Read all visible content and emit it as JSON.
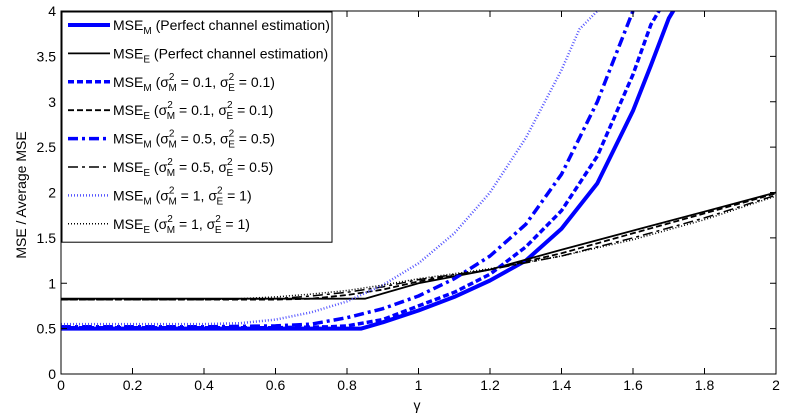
{
  "chart_data": {
    "type": "line",
    "xlabel": "γ",
    "ylabel": "MSE / Average MSE",
    "xlim": [
      0,
      2
    ],
    "ylim": [
      0,
      4
    ],
    "xticks": [
      0,
      0.2,
      0.4,
      0.6,
      0.8,
      1,
      1.2,
      1.4,
      1.6,
      1.8,
      2
    ],
    "xtick_labels": [
      "0",
      "0.2",
      "0.4",
      "0.6",
      "0.8",
      "1",
      "1.2",
      "1.4",
      "1.6",
      "1.8",
      "2"
    ],
    "yticks": [
      0,
      0.5,
      1,
      1.5,
      2,
      2.5,
      3,
      3.5,
      4
    ],
    "ytick_labels": [
      "0",
      "0.5",
      "1",
      "1.5",
      "2",
      "2.5",
      "3",
      "3.5",
      "4"
    ],
    "legend_position": "top-left",
    "series": [
      {
        "id": "mse-m-perfect",
        "legend_parts": [
          [
            "MSE",
            "n"
          ],
          [
            "M",
            "sub"
          ],
          [
            " (Perfect channel estimation)",
            "n"
          ]
        ],
        "color": "#0000ff",
        "dash": "solid",
        "width": 4,
        "x": [
          0,
          0.2,
          0.4,
          0.6,
          0.8,
          0.84,
          0.9,
          1.0,
          1.1,
          1.2,
          1.3,
          1.4,
          1.5,
          1.6,
          1.65,
          1.7,
          1.72
        ],
        "y": [
          0.5,
          0.5,
          0.5,
          0.5,
          0.5,
          0.5,
          0.57,
          0.7,
          0.85,
          1.03,
          1.25,
          1.6,
          2.1,
          2.9,
          3.4,
          3.92,
          4.05
        ]
      },
      {
        "id": "mse-e-perfect",
        "legend_parts": [
          [
            "MSE",
            "n"
          ],
          [
            "E",
            "sub"
          ],
          [
            " (Perfect channel estimation)",
            "n"
          ]
        ],
        "color": "#000000",
        "dash": "solid",
        "width": 1.8,
        "x": [
          0,
          0.2,
          0.4,
          0.6,
          0.8,
          0.85,
          1.0,
          1.2,
          1.4,
          1.6,
          1.8,
          2.0
        ],
        "y": [
          0.83,
          0.83,
          0.83,
          0.83,
          0.83,
          0.83,
          1.0,
          1.15,
          1.37,
          1.58,
          1.79,
          2.0
        ]
      },
      {
        "id": "mse-m-01",
        "legend_parts": [
          [
            "MSE",
            "n"
          ],
          [
            "M",
            "sub"
          ],
          [
            " (σ",
            "n"
          ],
          [
            "2",
            "sup"
          ],
          [
            "M",
            "sub"
          ],
          [
            " = 0.1, σ",
            "n"
          ],
          [
            "2",
            "sup"
          ],
          [
            "E",
            "sub"
          ],
          [
            " = 0.1)",
            "n"
          ]
        ],
        "color": "#0000ff",
        "dash": "6,3",
        "width": 3.5,
        "x": [
          0,
          0.2,
          0.4,
          0.6,
          0.75,
          0.8,
          0.9,
          1.0,
          1.1,
          1.2,
          1.3,
          1.4,
          1.5,
          1.6,
          1.65,
          1.68
        ],
        "y": [
          0.51,
          0.51,
          0.51,
          0.51,
          0.52,
          0.53,
          0.6,
          0.75,
          0.9,
          1.1,
          1.4,
          1.8,
          2.4,
          3.3,
          3.85,
          4.05
        ]
      },
      {
        "id": "mse-e-01",
        "legend_parts": [
          [
            "MSE",
            "n"
          ],
          [
            "E",
            "sub"
          ],
          [
            " (σ",
            "n"
          ],
          [
            "2",
            "sup"
          ],
          [
            "M",
            "sub"
          ],
          [
            " = 0.1, σ",
            "n"
          ],
          [
            "2",
            "sup"
          ],
          [
            "E",
            "sub"
          ],
          [
            " = 0.1)",
            "n"
          ]
        ],
        "color": "#000000",
        "dash": "6,3",
        "width": 1.8,
        "x": [
          0,
          0.2,
          0.4,
          0.6,
          0.7,
          0.8,
          0.9,
          1.0,
          1.2,
          1.4,
          1.6,
          1.8,
          2.0
        ],
        "y": [
          0.82,
          0.82,
          0.82,
          0.82,
          0.83,
          0.87,
          0.93,
          1.02,
          1.15,
          1.33,
          1.55,
          1.77,
          1.99
        ]
      },
      {
        "id": "mse-m-05",
        "legend_parts": [
          [
            "MSE",
            "n"
          ],
          [
            "M",
            "sub"
          ],
          [
            " (σ",
            "n"
          ],
          [
            "2",
            "sup"
          ],
          [
            "M",
            "sub"
          ],
          [
            " = 0.5, σ",
            "n"
          ],
          [
            "2",
            "sup"
          ],
          [
            "E",
            "sub"
          ],
          [
            " = 0.5)",
            "n"
          ]
        ],
        "color": "#0000ff",
        "dash": "10,4,3,4",
        "width": 3.5,
        "x": [
          0,
          0.2,
          0.4,
          0.6,
          0.7,
          0.8,
          0.9,
          1.0,
          1.1,
          1.2,
          1.3,
          1.4,
          1.5,
          1.55,
          1.6,
          1.63
        ],
        "y": [
          0.52,
          0.52,
          0.52,
          0.53,
          0.55,
          0.62,
          0.72,
          0.86,
          1.05,
          1.3,
          1.65,
          2.2,
          3.0,
          3.5,
          4.0,
          4.05
        ]
      },
      {
        "id": "mse-e-05",
        "legend_parts": [
          [
            "MSE",
            "n"
          ],
          [
            "E",
            "sub"
          ],
          [
            " (σ",
            "n"
          ],
          [
            "2",
            "sup"
          ],
          [
            "M",
            "sub"
          ],
          [
            " = 0.5, σ",
            "n"
          ],
          [
            "2",
            "sup"
          ],
          [
            "E",
            "sub"
          ],
          [
            " = 0.5)",
            "n"
          ]
        ],
        "color": "#000000",
        "dash": "10,4,3,4",
        "width": 1.5,
        "x": [
          0,
          0.2,
          0.4,
          0.6,
          0.7,
          0.8,
          0.9,
          1.0,
          1.2,
          1.4,
          1.6,
          1.8,
          2.0
        ],
        "y": [
          0.82,
          0.82,
          0.82,
          0.83,
          0.86,
          0.9,
          0.96,
          1.04,
          1.15,
          1.3,
          1.5,
          1.72,
          1.97
        ]
      },
      {
        "id": "mse-m-1",
        "legend_parts": [
          [
            "MSE",
            "n"
          ],
          [
            "M",
            "sub"
          ],
          [
            " (σ",
            "n"
          ],
          [
            "2",
            "sup"
          ],
          [
            "M",
            "sub"
          ],
          [
            " = 1, σ",
            "n"
          ],
          [
            "2",
            "sup"
          ],
          [
            "E",
            "sub"
          ],
          [
            " = 1)",
            "n"
          ]
        ],
        "color": "#5555ff",
        "dash": "1,2",
        "width": 2.5,
        "x": [
          0,
          0.2,
          0.4,
          0.5,
          0.6,
          0.7,
          0.8,
          0.9,
          1.0,
          1.1,
          1.2,
          1.3,
          1.4,
          1.45,
          1.5,
          1.53
        ],
        "y": [
          0.55,
          0.55,
          0.55,
          0.56,
          0.6,
          0.68,
          0.8,
          0.98,
          1.22,
          1.55,
          2.0,
          2.6,
          3.35,
          3.8,
          4.0,
          4.05
        ]
      },
      {
        "id": "mse-e-1",
        "legend_parts": [
          [
            "MSE",
            "n"
          ],
          [
            "E",
            "sub"
          ],
          [
            " (σ",
            "n"
          ],
          [
            "2",
            "sup"
          ],
          [
            "M",
            "sub"
          ],
          [
            " = 1, σ",
            "n"
          ],
          [
            "2",
            "sup"
          ],
          [
            "E",
            "sub"
          ],
          [
            " = 1)",
            "n"
          ]
        ],
        "color": "#000000",
        "dash": "1,2",
        "width": 1.5,
        "x": [
          0,
          0.2,
          0.4,
          0.5,
          0.6,
          0.7,
          0.8,
          0.9,
          1.0,
          1.2,
          1.4,
          1.6,
          1.8,
          2.0
        ],
        "y": [
          0.82,
          0.82,
          0.82,
          0.83,
          0.85,
          0.88,
          0.92,
          0.98,
          1.05,
          1.16,
          1.3,
          1.48,
          1.7,
          1.96
        ]
      }
    ]
  }
}
